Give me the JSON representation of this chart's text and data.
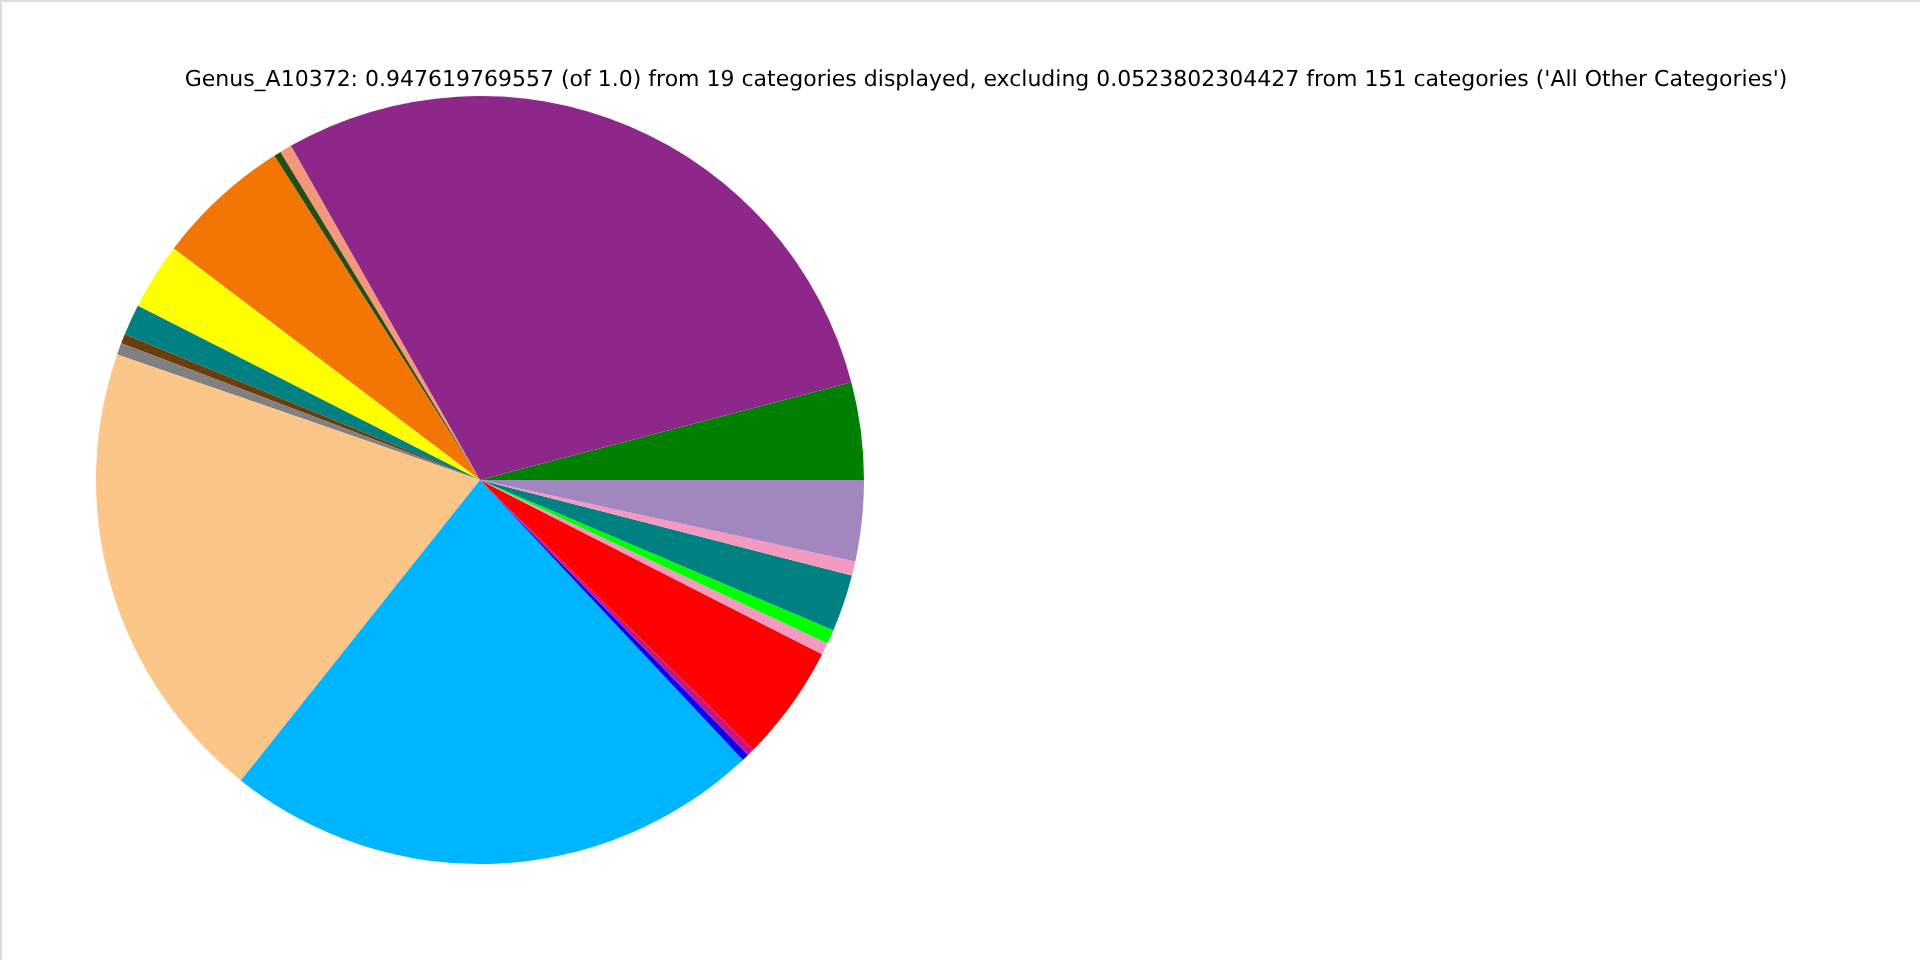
{
  "chart_data": {
    "type": "pie",
    "title": "Genus_A10372: 0.947619769557 (of 1.0) from 19 categories displayed, excluding 0.0523802304427 from 151 categories ('All Other Categories')",
    "categories": [
      null,
      null,
      null,
      null,
      null,
      null,
      null,
      null,
      null,
      null,
      null,
      null,
      null,
      null,
      null,
      null,
      null,
      null,
      null
    ],
    "values": [
      4.1,
      29.1,
      0.5,
      0.3,
      5.7,
      2.8,
      1.3,
      0.4,
      0.5,
      19.6,
      22.7,
      0.3,
      0.3,
      4.9,
      0.5,
      0.6,
      2.4,
      0.6,
      3.4
    ],
    "colors": [
      "#008000",
      "#8e278a",
      "#f4977a",
      "#254d10",
      "#f37504",
      "#ffff00",
      "#008080",
      "#6a3d0d",
      "#808080",
      "#fdc689",
      "#00b5ff",
      "#0000ff",
      "#c71585",
      "#ff0000",
      "#f49ac1",
      "#00ff00",
      "#008080",
      "#f49ac1",
      "#a286c0"
    ]
  }
}
